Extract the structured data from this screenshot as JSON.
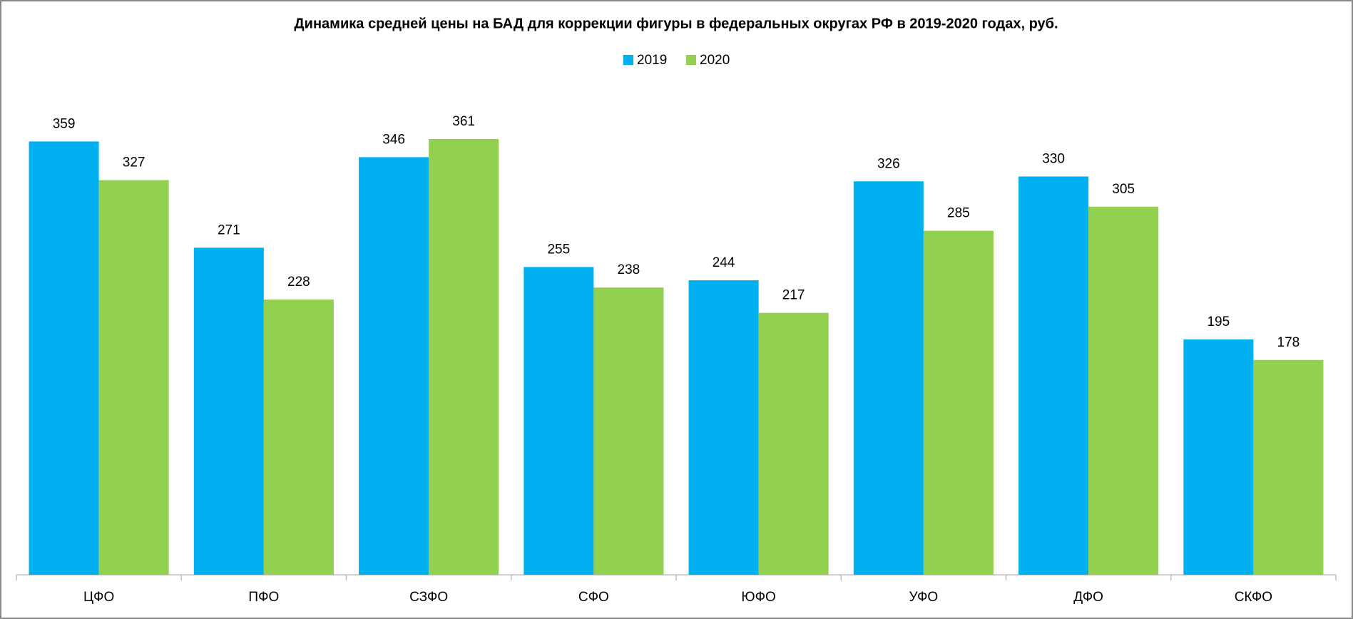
{
  "chart_data": {
    "type": "bar",
    "title": "Динамика средней цены на БАД для коррекции фигуры в федеральных округах РФ в 2019-2020 годах, руб.",
    "categories": [
      "ЦФО",
      "ПФО",
      "СЗФО",
      "СФО",
      "ЮФО",
      "УФО",
      "ДФО",
      "СКФО"
    ],
    "series": [
      {
        "name": "2019",
        "color": "#00b0f0",
        "values": [
          359,
          271,
          346,
          255,
          244,
          326,
          330,
          195
        ]
      },
      {
        "name": "2020",
        "color": "#92d050",
        "values": [
          327,
          228,
          361,
          238,
          217,
          285,
          305,
          178
        ]
      }
    ],
    "ylim": [
      0,
      400
    ],
    "legend": "top"
  }
}
